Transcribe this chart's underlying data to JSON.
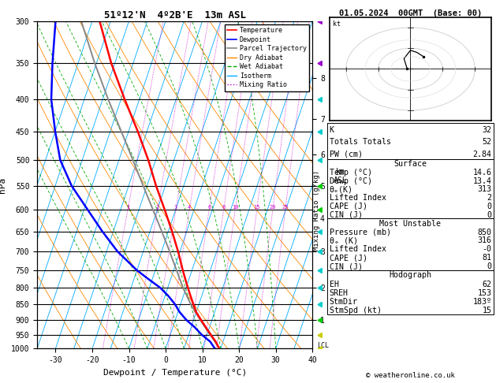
{
  "title_left": "51º12'N  4º2B'E  13m ASL",
  "title_right": "01.05.2024  00GMT  (Base: 00)",
  "xlabel": "Dewpoint / Temperature (°C)",
  "ylabel_left": "hPa",
  "p_levels": [
    300,
    350,
    400,
    450,
    500,
    550,
    600,
    650,
    700,
    750,
    800,
    850,
    900,
    950,
    1000
  ],
  "p_min": 300,
  "p_max": 1000,
  "t_min": -35,
  "t_max": 40,
  "skew": 30.0,
  "temp_profile_p": [
    1000,
    975,
    950,
    925,
    900,
    875,
    850,
    825,
    800,
    775,
    750,
    700,
    650,
    600,
    550,
    500,
    450,
    400,
    350,
    300
  ],
  "temp_profile_t": [
    14.6,
    13.0,
    11.0,
    9.0,
    7.0,
    5.0,
    3.5,
    2.0,
    0.5,
    -1.0,
    -2.5,
    -5.5,
    -9.0,
    -13.0,
    -17.5,
    -22.0,
    -27.5,
    -34.0,
    -41.0,
    -48.0
  ],
  "dewp_profile_p": [
    1000,
    975,
    950,
    925,
    900,
    875,
    850,
    825,
    800,
    775,
    750,
    700,
    650,
    600,
    550,
    500,
    450,
    400,
    350,
    300
  ],
  "dewp_profile_t": [
    13.4,
    11.5,
    8.5,
    6.0,
    3.0,
    0.5,
    -1.5,
    -4.0,
    -7.0,
    -11.0,
    -15.0,
    -22.0,
    -28.0,
    -34.0,
    -40.5,
    -46.0,
    -50.0,
    -54.0,
    -57.0,
    -60.0
  ],
  "parcel_profile_p": [
    1000,
    975,
    950,
    925,
    900,
    875,
    850,
    825,
    800,
    775,
    750,
    700,
    650,
    600,
    550,
    500,
    450,
    400,
    350,
    300
  ],
  "parcel_profile_t": [
    14.6,
    12.8,
    10.8,
    8.8,
    6.8,
    4.8,
    2.8,
    1.0,
    -0.8,
    -2.5,
    -4.2,
    -7.8,
    -11.8,
    -16.2,
    -21.0,
    -26.2,
    -32.0,
    -38.5,
    -45.5,
    -53.0
  ],
  "bg_color": "#ffffff",
  "isotherm_color": "#00aaff",
  "dry_adiabat_color": "#ff8800",
  "wet_adiabat_color": "#00aa00",
  "mixing_ratio_color": "#cc00cc",
  "temp_color": "#ff0000",
  "dewp_color": "#0000ff",
  "parcel_color": "#888888",
  "mixing_ratios": [
    1,
    2,
    3,
    4,
    6,
    8,
    10,
    15,
    20,
    25
  ],
  "dry_thetas": [
    250,
    260,
    270,
    280,
    290,
    300,
    310,
    320,
    330,
    340,
    350,
    360,
    380
  ],
  "wet_start_temps": [
    -10,
    -5,
    0,
    5,
    10,
    15,
    20,
    25,
    30
  ],
  "k_index": 32,
  "totals_totals": 52,
  "pw_cm": "2.84",
  "surf_temp": "14.6",
  "surf_dewp": "13.4",
  "surf_theta_e": "313",
  "surf_lifted_index": "2",
  "surf_cape": "0",
  "surf_cin": "0",
  "mu_pressure": "850",
  "mu_theta_e": "316",
  "mu_lifted_index": "-0",
  "mu_cape": "81",
  "mu_cin": "0",
  "hodo_eh": "62",
  "hodo_sreh": "153",
  "hodo_stmdir": "183º",
  "hodo_stmspd": "15",
  "copyright": "© weatheronline.co.uk",
  "lcl_pressure": 990,
  "km_ticks": [
    1,
    2,
    3,
    4,
    5,
    6,
    7,
    8
  ],
  "km_pressures": [
    900,
    800,
    700,
    620,
    550,
    490,
    430,
    370
  ],
  "wind_data": [
    [
      1000,
      "#cccc00"
    ],
    [
      950,
      "#cccc00"
    ],
    [
      900,
      "#00cc00"
    ],
    [
      850,
      "#00cccc"
    ],
    [
      800,
      "#00cccc"
    ],
    [
      750,
      "#00cccc"
    ],
    [
      700,
      "#00cccc"
    ],
    [
      650,
      "#00cccc"
    ],
    [
      600,
      "#00cc00"
    ],
    [
      550,
      "#00cc00"
    ],
    [
      500,
      "#00cccc"
    ],
    [
      450,
      "#00cccc"
    ],
    [
      400,
      "#00cccc"
    ],
    [
      350,
      "#9900cc"
    ],
    [
      300,
      "#9900cc"
    ]
  ]
}
